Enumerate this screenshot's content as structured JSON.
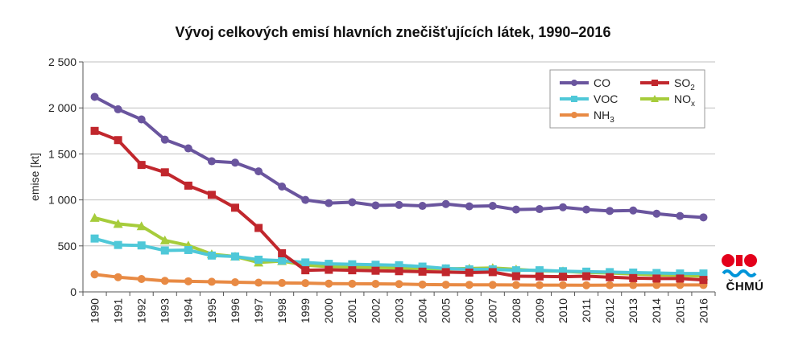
{
  "chart_data": {
    "type": "line",
    "title": "Vývoj celkových emisí hlavních znečišťujících látek, 1990–2016",
    "ylabel": "emise [kt]",
    "xlabel": "",
    "ylim": [
      0,
      2500
    ],
    "yticks": [
      "0",
      "500",
      "1 000",
      "1 500",
      "2 000",
      "2 500"
    ],
    "ytick_values": [
      0,
      500,
      1000,
      1500,
      2000,
      2500
    ],
    "categories": [
      "1990",
      "1991",
      "1992",
      "1993",
      "1994",
      "1995",
      "1996",
      "1997",
      "1998",
      "1999",
      "2000",
      "2001",
      "2002",
      "2003",
      "2004",
      "2005",
      "2006",
      "2007",
      "2008",
      "2009",
      "2010",
      "2011",
      "2012",
      "2013",
      "2014",
      "2015",
      "2016"
    ],
    "grid": "horizontal",
    "legend_position": "top-right",
    "series": [
      {
        "key": "co",
        "name": "CO",
        "sub": "",
        "color": "#6a559e",
        "marker": "circle",
        "values": [
          2120,
          1985,
          1875,
          1655,
          1560,
          1420,
          1405,
          1310,
          1145,
          1000,
          965,
          975,
          940,
          945,
          935,
          955,
          930,
          935,
          895,
          900,
          920,
          895,
          880,
          885,
          850,
          825,
          810
        ]
      },
      {
        "key": "so2",
        "name": "SO",
        "sub": "2",
        "color": "#c1272d",
        "marker": "square",
        "values": [
          1750,
          1650,
          1380,
          1300,
          1155,
          1055,
          915,
          695,
          420,
          235,
          240,
          235,
          230,
          225,
          220,
          215,
          210,
          215,
          170,
          168,
          165,
          170,
          160,
          150,
          145,
          145,
          130
        ]
      },
      {
        "key": "voc",
        "name": "VOC",
        "sub": "",
        "color": "#4fc8d8",
        "marker": "square",
        "values": [
          580,
          510,
          505,
          450,
          455,
          395,
          385,
          350,
          340,
          320,
          305,
          300,
          295,
          290,
          275,
          255,
          245,
          245,
          235,
          235,
          225,
          220,
          215,
          210,
          205,
          200,
          200
        ]
      },
      {
        "key": "nox",
        "name": "NO",
        "sub": "x",
        "color": "#a6cc3b",
        "marker": "triangle",
        "values": [
          805,
          740,
          715,
          560,
          505,
          410,
          385,
          320,
          335,
          290,
          275,
          270,
          265,
          260,
          255,
          250,
          255,
          260,
          245,
          230,
          225,
          210,
          205,
          195,
          185,
          180,
          170
        ]
      },
      {
        "key": "nh3",
        "name": "NH",
        "sub": "3",
        "color": "#e88a44",
        "marker": "circle",
        "values": [
          190,
          160,
          140,
          120,
          115,
          110,
          105,
          100,
          97,
          95,
          90,
          88,
          87,
          85,
          80,
          78,
          77,
          76,
          75,
          73,
          73,
          72,
          73,
          74,
          75,
          75,
          75
        ]
      }
    ]
  },
  "logo": {
    "text": "ČHMÚ",
    "colors": {
      "red": "#e3001b",
      "blue": "#0095d9"
    }
  }
}
